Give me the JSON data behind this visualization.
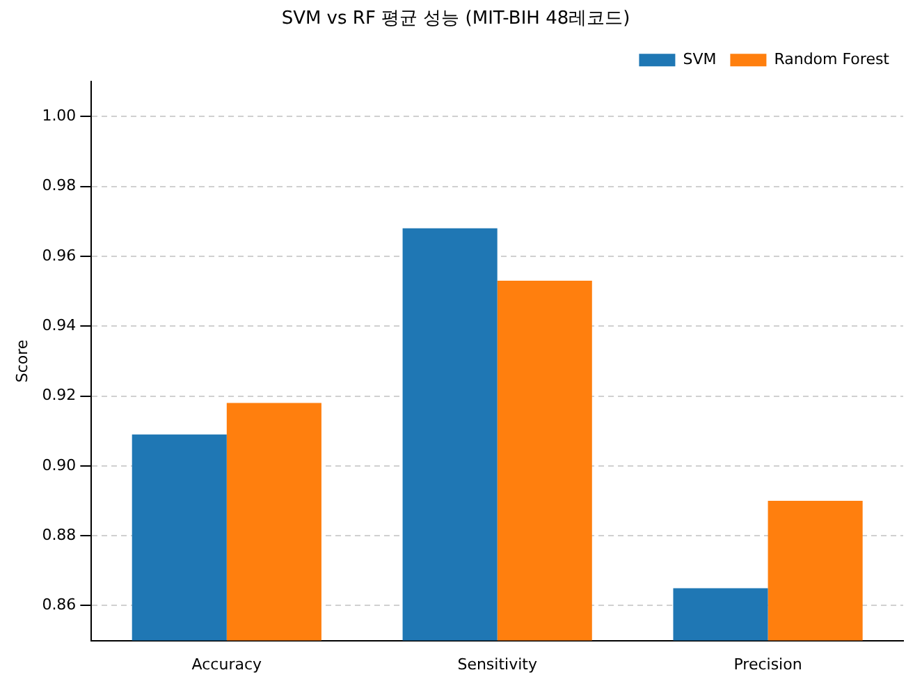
{
  "chart_data": {
    "type": "bar",
    "title": "SVM vs RF 평균 성능 (MIT-BIH 48레코드)",
    "ylabel": "Score",
    "categories": [
      "Accuracy",
      "Sensitivity",
      "Precision"
    ],
    "series": [
      {
        "name": "SVM",
        "color": "#1f77b4",
        "values": [
          0.909,
          0.968,
          0.865
        ]
      },
      {
        "name": "Random Forest",
        "color": "#ff7f0e",
        "values": [
          0.918,
          0.953,
          0.89
        ]
      }
    ],
    "ylim": [
      0.85,
      1.01
    ],
    "yticks": [
      0.86,
      0.88,
      {
        "value": 0.9,
        "label": "0.90"
      },
      0.92,
      0.94,
      0.96,
      0.98,
      {
        "value": 1,
        "label": "1.00"
      }
    ],
    "grid": "y",
    "legend": "top right"
  }
}
